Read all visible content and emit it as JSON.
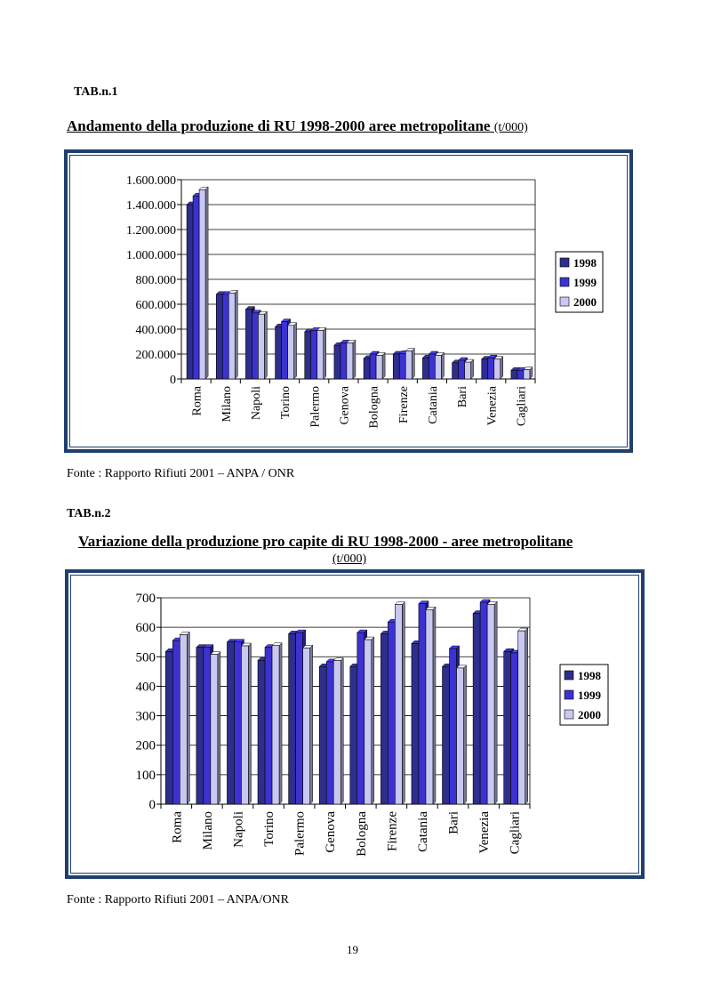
{
  "tab1": {
    "label": "TAB.n.1",
    "title": "Andamento della produzione di RU 1998-2000  aree metropolitane",
    "unit": "(t/000)",
    "source": "Fonte : Rapporto Rifiuti 2001 – ANPA / ONR"
  },
  "tab2": {
    "label": "TAB.n.2",
    "title": "Variazione della produzione pro capite di RU 1998-2000 - aree metropolitane",
    "unit": "(t/000)",
    "source": "Fonte : Rapporto Rifiuti 2001 – ANPA/ONR"
  },
  "page_number": "19",
  "colors": {
    "s1998": "#2e2e8c",
    "s1999": "#3c32d2",
    "s2000": "#c8c8f0",
    "frame": "#1f3f6e"
  },
  "chart_data": [
    {
      "type": "bar",
      "title": "Andamento della produzione di RU 1998-2000  aree metropolitane (t/000)",
      "categories": [
        "Roma",
        "Milano",
        "Napoli",
        "Torino",
        "Palermo",
        "Genova",
        "Bologna",
        "Firenze",
        "Catania",
        "Bari",
        "Venezia",
        "Cagliari"
      ],
      "series": [
        {
          "name": "1998",
          "values": [
            1400000,
            680000,
            560000,
            420000,
            380000,
            270000,
            165000,
            200000,
            170000,
            130000,
            160000,
            70000
          ]
        },
        {
          "name": "1999",
          "values": [
            1470000,
            680000,
            530000,
            460000,
            390000,
            290000,
            200000,
            205000,
            200000,
            150000,
            170000,
            70000
          ]
        },
        {
          "name": "2000",
          "values": [
            1520000,
            690000,
            520000,
            430000,
            390000,
            290000,
            190000,
            225000,
            190000,
            135000,
            160000,
            75000
          ]
        }
      ],
      "yticks": [
        "0",
        "200.000",
        "400.000",
        "600.000",
        "800.000",
        "1.000.000",
        "1.200.000",
        "1.400.000",
        "1.600.000"
      ],
      "ylim": [
        0,
        1600000
      ],
      "legend": "right",
      "xlabel": "",
      "ylabel": ""
    },
    {
      "type": "bar",
      "title": "Variazione della produzione pro capite di RU 1998-2000 - aree metropolitane (t/000)",
      "categories": [
        "Roma",
        "Milano",
        "Napoli",
        "Torino",
        "Palermo",
        "Genova",
        "Bologna",
        "Firenze",
        "Catania",
        "Bari",
        "Venezia",
        "Cagliari"
      ],
      "series": [
        {
          "name": "1998",
          "values": [
            518,
            532,
            550,
            488,
            578,
            467,
            467,
            578,
            545,
            467,
            647,
            518
          ]
        },
        {
          "name": "1999",
          "values": [
            555,
            532,
            550,
            532,
            582,
            483,
            582,
            618,
            680,
            528,
            685,
            513
          ]
        },
        {
          "name": "2000",
          "values": [
            575,
            508,
            537,
            538,
            530,
            487,
            558,
            677,
            660,
            462,
            678,
            588
          ]
        }
      ],
      "yticks": [
        "0",
        "100",
        "200",
        "300",
        "400",
        "500",
        "600",
        "700"
      ],
      "ylim": [
        0,
        700
      ],
      "legend": "right",
      "xlabel": "",
      "ylabel": ""
    }
  ]
}
